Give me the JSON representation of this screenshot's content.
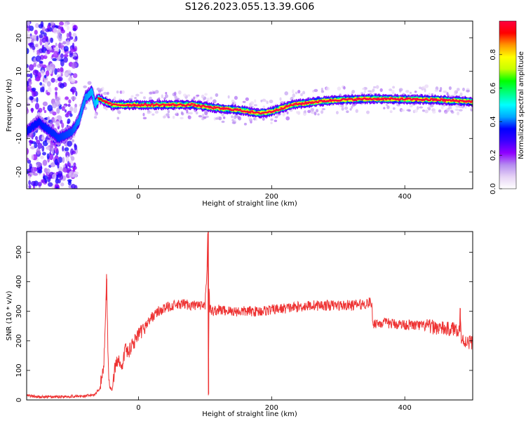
{
  "title": "S126.2023.055.13.39.G06",
  "chart_data": [
    {
      "type": "heatmap",
      "xlabel": "Height of straight line (km)",
      "ylabel": "Frequency (Hz)",
      "xlim": [
        -168,
        502
      ],
      "ylim": [
        -25,
        25
      ],
      "xticks": [
        0,
        200,
        400
      ],
      "yticks": [
        -20,
        -10,
        0,
        10,
        20
      ],
      "colorbar": {
        "label": "Normalized spectral amplitude",
        "range": [
          0,
          1
        ],
        "ticks": [
          "0.0",
          "0.2",
          "0.4",
          "0.6",
          "0.8"
        ],
        "colormap": [
          "#ffffff",
          "#e6d3f5",
          "#b58cf0",
          "#8f00ff",
          "#3a00ff",
          "#0000ff",
          "#00a8ff",
          "#00ffff",
          "#00ff80",
          "#00ff00",
          "#c8ff00",
          "#ffff00",
          "#ff9600",
          "#ff0000",
          "#ff0040"
        ]
      },
      "ridge": {
        "x": [
          -168,
          -150,
          -120,
          -100,
          -90,
          -80,
          -70,
          -65,
          -60,
          -50,
          -40,
          0,
          40,
          80,
          120,
          150,
          180,
          200,
          230,
          270,
          300,
          350,
          400,
          450,
          502
        ],
        "y": [
          -8,
          -5,
          -10,
          -8,
          -5,
          2,
          4,
          0,
          2,
          1,
          0,
          0,
          0,
          0,
          -1,
          -1.5,
          -2.5,
          -2,
          0,
          1,
          1.5,
          1.8,
          1.7,
          1.5,
          1
        ],
        "amplitude": [
          0.2,
          0.2,
          0.25,
          0.3,
          0.4,
          0.4,
          0.5,
          0.5,
          0.7,
          0.8,
          0.9,
          0.95,
          0.95,
          0.95,
          0.95,
          0.95,
          0.95,
          0.95,
          0.95,
          0.95,
          0.95,
          0.95,
          0.95,
          0.95,
          0.95
        ]
      }
    },
    {
      "type": "line",
      "xlabel": "Height of straight line (km)",
      "ylabel": "SNR (10 * v/v)",
      "xlim": [
        -168,
        502
      ],
      "ylim": [
        0,
        570
      ],
      "xticks": [
        0,
        200,
        400
      ],
      "yticks": [
        0,
        100,
        200,
        300,
        400,
        500
      ],
      "color": "#ee3333",
      "series": [
        {
          "x": [
            -168,
            -150,
            -130,
            -110,
            -90,
            -75,
            -65,
            -58,
            -52,
            -48,
            -45,
            -42,
            -40,
            -35,
            -30,
            -25,
            -20,
            -15,
            -10,
            -5,
            0,
            5,
            10,
            20,
            30,
            40,
            50,
            60,
            70,
            80,
            90,
            95,
            100,
            103,
            104,
            105,
            106,
            107,
            110,
            120,
            140,
            160,
            180,
            200,
            220,
            240,
            260,
            280,
            300,
            320,
            340,
            348,
            350,
            352,
            370,
            400,
            430,
            450,
            460,
            470,
            480,
            482,
            483,
            485,
            490,
            500,
            502
          ],
          "y": [
            15,
            10,
            10,
            12,
            12,
            14,
            20,
            40,
            120,
            410,
            80,
            40,
            30,
            110,
            150,
            90,
            180,
            160,
            190,
            200,
            220,
            230,
            250,
            280,
            300,
            310,
            320,
            320,
            325,
            320,
            320,
            315,
            320,
            450,
            570,
            20,
            380,
            310,
            300,
            305,
            300,
            300,
            300,
            305,
            310,
            315,
            320,
            320,
            320,
            320,
            325,
            330,
            330,
            260,
            260,
            255,
            250,
            245,
            240,
            240,
            240,
            230,
            310,
            200,
            200,
            195,
            200
          ]
        }
      ]
    }
  ]
}
